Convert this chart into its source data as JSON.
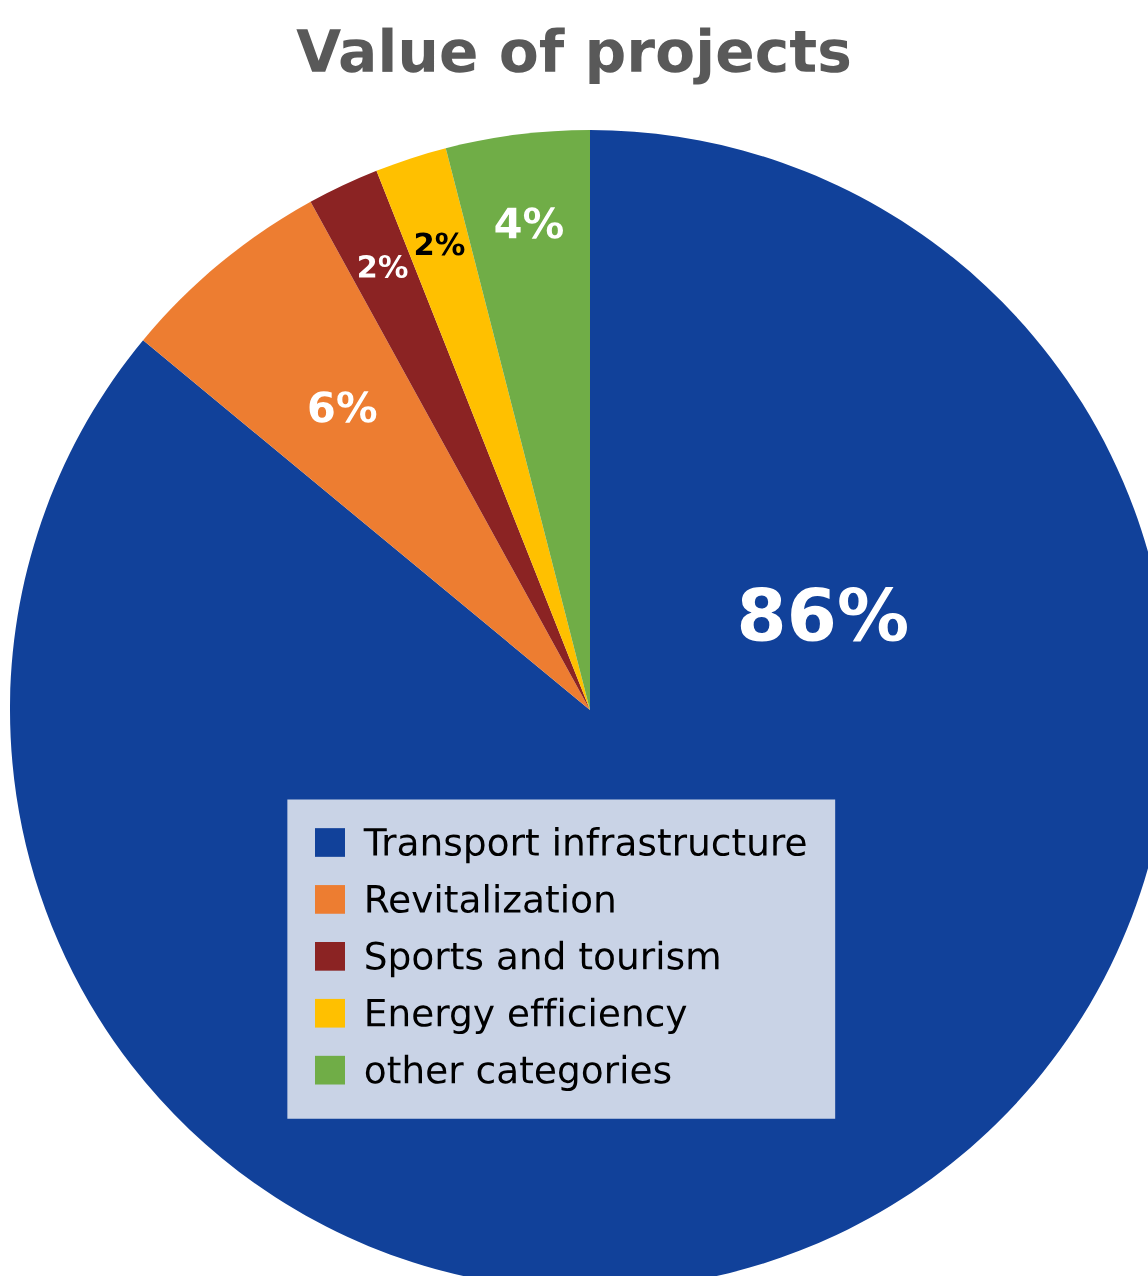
{
  "chart_data": {
    "type": "pie",
    "title": "Value of projects",
    "categories": [
      "Transport infrastructure",
      "Revitalization",
      "Sports and tourism",
      "Energy efficiency",
      "other categories"
    ],
    "values": [
      86,
      6,
      2,
      2,
      4
    ],
    "colors": [
      "#11419a",
      "#ed7d31",
      "#8b2323",
      "#ffc000",
      "#70ad47"
    ],
    "value_labels": [
      "86%",
      "6%",
      "2%",
      "2%",
      "4%"
    ],
    "legend": "bottom"
  }
}
